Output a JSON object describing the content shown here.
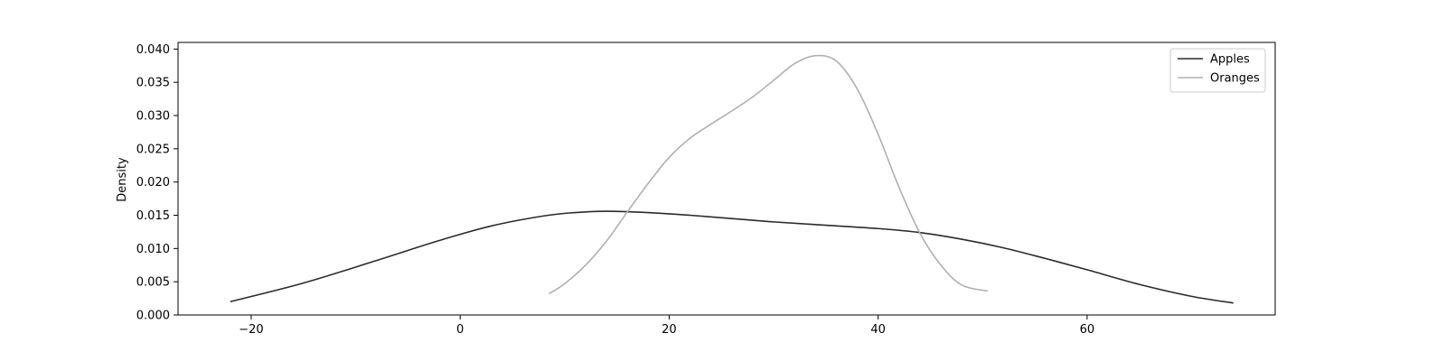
{
  "chart_data": {
    "type": "line",
    "title": "",
    "xlabel": "",
    "ylabel": "Density",
    "xlim": [
      -27,
      78
    ],
    "ylim": [
      0,
      0.041
    ],
    "x_ticks": [
      -20,
      0,
      20,
      40,
      60
    ],
    "x_tick_labels": [
      "−20",
      "0",
      "20",
      "40",
      "60"
    ],
    "y_ticks": [
      0,
      0.005,
      0.01,
      0.015,
      0.02,
      0.025,
      0.03,
      0.035,
      0.04
    ],
    "y_tick_labels": [
      "0.000",
      "0.005",
      "0.010",
      "0.015",
      "0.020",
      "0.025",
      "0.030",
      "0.035",
      "0.040"
    ],
    "grid": false,
    "legend_position": "top-right",
    "series": [
      {
        "name": "Apples",
        "color": "#2b2b2b",
        "x": [
          -22,
          -15,
          -8,
          -2,
          3,
          8,
          11,
          14,
          18,
          22,
          26,
          30,
          35,
          40,
          44,
          48,
          52,
          56,
          60,
          65,
          70,
          74
        ],
        "y": [
          0.002,
          0.0048,
          0.0082,
          0.0112,
          0.0134,
          0.0149,
          0.0154,
          0.0156,
          0.0154,
          0.015,
          0.0145,
          0.014,
          0.0135,
          0.013,
          0.0124,
          0.0114,
          0.0101,
          0.0085,
          0.0068,
          0.0046,
          0.0028,
          0.0018
        ]
      },
      {
        "name": "Oranges",
        "color": "#b0b0b0",
        "x": [
          8.5,
          10,
          12,
          14,
          16,
          18,
          20,
          22,
          24,
          26,
          28,
          30,
          32,
          34,
          36,
          38,
          40,
          42,
          44,
          46,
          48,
          50.5
        ],
        "y": [
          0.0032,
          0.0047,
          0.0075,
          0.0111,
          0.0155,
          0.0198,
          0.0237,
          0.0266,
          0.0287,
          0.0307,
          0.0328,
          0.0353,
          0.0378,
          0.039,
          0.0382,
          0.034,
          0.0272,
          0.0192,
          0.0123,
          0.0075,
          0.0045,
          0.0036
        ]
      }
    ]
  }
}
